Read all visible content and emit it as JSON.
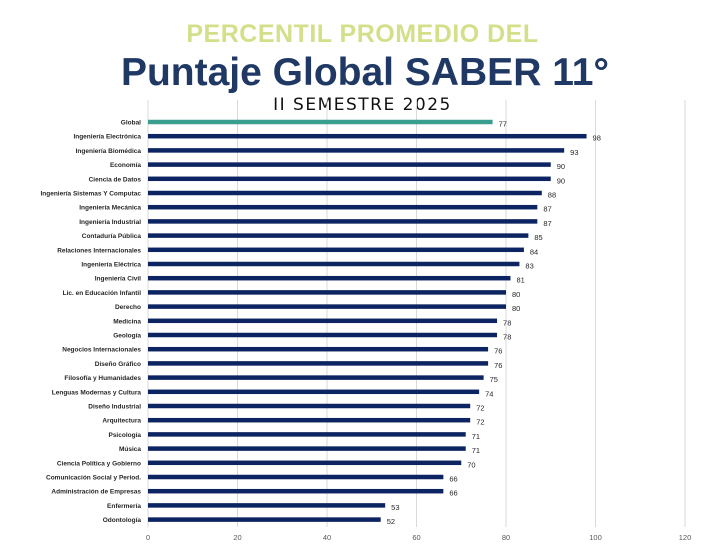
{
  "header": {
    "pre_title": "PERCENTIL PROMEDIO DEL",
    "main_title": "Puntaje Global SABER 11°",
    "sub_title": "II SEMESTRE 2025"
  },
  "colors": {
    "pre_title": "#d4df8a",
    "main_title": "#1f3864",
    "bar": "#0c2461",
    "highlight_bar": "#3a9e8f",
    "grid": "#d9d9d9"
  },
  "chart_data": {
    "type": "bar",
    "orientation": "horizontal",
    "title": "Puntaje Global SABER 11°",
    "subtitle": "II SEMESTRE 2025",
    "categories": [
      "Global",
      "Ingeniería  Electrónica",
      "Ingeniería Biomédica",
      "Economía",
      "Ciencia de Datos",
      "Ingeniería Sistemas Y Computac",
      "Ingeniería Mecánica",
      "Ingeniería Industrial",
      "Contaduría Pública",
      "Relaciones Internacionales",
      "Ingeniería Eléctrica",
      "Ingeniería Civil",
      "Lic. en Educación Infantil",
      "Derecho",
      "Medicina",
      "Geología",
      "Negocios Internacionales",
      "Diseño Gráfico",
      "Filosofía y Humanidades",
      "Lenguas Modernas y Cultura",
      "Diseño Industrial",
      "Arquitectura",
      "Psicología",
      "Música",
      "Ciencia Política y Gobierno",
      "Comunicación Social y Period.",
      "Administración de Empresas",
      "Enfermería",
      "Odontología"
    ],
    "values": [
      77,
      98,
      93,
      90,
      90,
      88,
      87,
      87,
      85,
      84,
      83,
      81,
      80,
      80,
      78,
      78,
      76,
      76,
      75,
      74,
      72,
      72,
      71,
      71,
      70,
      66,
      66,
      53,
      52
    ],
    "highlight_index": 0,
    "xlim": [
      0,
      120
    ],
    "xticks": [
      "0",
      "20",
      "40",
      "60",
      "80",
      "100",
      "120"
    ],
    "grid": true,
    "legend": "none",
    "data_labels": true
  }
}
